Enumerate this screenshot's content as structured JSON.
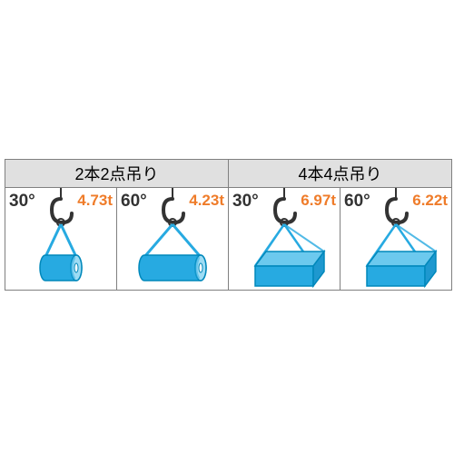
{
  "headers": [
    "2本2点吊り",
    "4本4点吊り"
  ],
  "cells": [
    {
      "angle": "30°",
      "load": "4.73t",
      "shape": "cylinder",
      "spread": "narrow"
    },
    {
      "angle": "60°",
      "load": "4.23t",
      "shape": "cylinder",
      "spread": "wide"
    },
    {
      "angle": "30°",
      "load": "6.97t",
      "shape": "box",
      "spread": "narrow"
    },
    {
      "angle": "60°",
      "load": "6.22t",
      "shape": "box",
      "spread": "wide"
    }
  ],
  "style": {
    "angle_fontsize": 19,
    "load_fontsize": 17,
    "angle_color": "#333333",
    "load_color": "#ef7c2a",
    "sling_color": "#27aae1",
    "object_fill": "#27aae1",
    "object_stroke": "#0088bb",
    "hook_color": "#333333",
    "cell_border": "#808080",
    "header_bg": "#e0e0e0",
    "cell_bg": "#ffffff"
  }
}
